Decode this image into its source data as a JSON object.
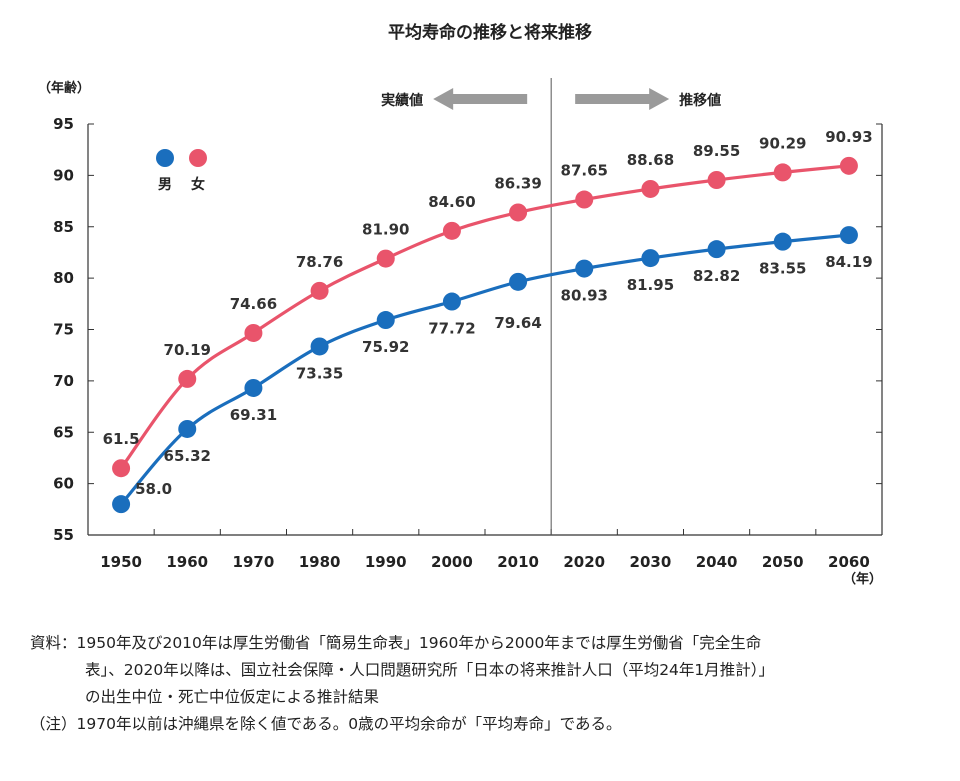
{
  "chart_data": {
    "type": "line",
    "title": "平均寿命の推移と将来推移",
    "ylabel": "（年齢）",
    "xunit": "（年）",
    "categories": [
      "1950",
      "1960",
      "1970",
      "1980",
      "1990",
      "2000",
      "2010",
      "2020",
      "2030",
      "2040",
      "2050",
      "2060"
    ],
    "ylim": [
      55,
      95
    ],
    "yticks": [
      "55",
      "60",
      "65",
      "70",
      "75",
      "80",
      "85",
      "90",
      "95"
    ],
    "grid": false,
    "legend_position": "top-left",
    "divider_after_category": "2010",
    "phase_labels": {
      "actual": "実績値",
      "projected": "推移値"
    },
    "series": [
      {
        "name": "男",
        "color": "#1a6ebd",
        "values": [
          58.0,
          65.32,
          69.31,
          73.35,
          75.92,
          77.72,
          79.64,
          80.93,
          81.95,
          82.82,
          83.55,
          84.19
        ],
        "labels": [
          "58.0",
          "65.32",
          "69.31",
          "73.35",
          "75.92",
          "77.72",
          "79.64",
          "80.93",
          "81.95",
          "82.82",
          "83.55",
          "84.19"
        ]
      },
      {
        "name": "女",
        "color": "#e9546b",
        "values": [
          61.5,
          70.19,
          74.66,
          78.76,
          81.9,
          84.6,
          86.39,
          87.65,
          88.68,
          89.55,
          90.29,
          90.93
        ],
        "labels": [
          "61.5",
          "70.19",
          "74.66",
          "78.76",
          "81.90",
          "84.60",
          "86.39",
          "87.65",
          "88.68",
          "89.55",
          "90.29",
          "90.93"
        ]
      }
    ]
  },
  "notes": {
    "source_label": "資料：",
    "source_line1": "1950年及び2010年は厚生労働省「簡易生命表」1960年から2000年までは厚生労働省「完全生命",
    "source_line2": "表」、2020年以降は、国立社会保障・人口問題研究所「日本の将来推計人口（平均24年1月推計）」",
    "source_line3": "の出生中位・死亡中位仮定による推計結果",
    "note_label": "（注）",
    "note_text": "1970年以前は沖縄県を除く値である。0歳の平均余命が「平均寿命」である。"
  }
}
